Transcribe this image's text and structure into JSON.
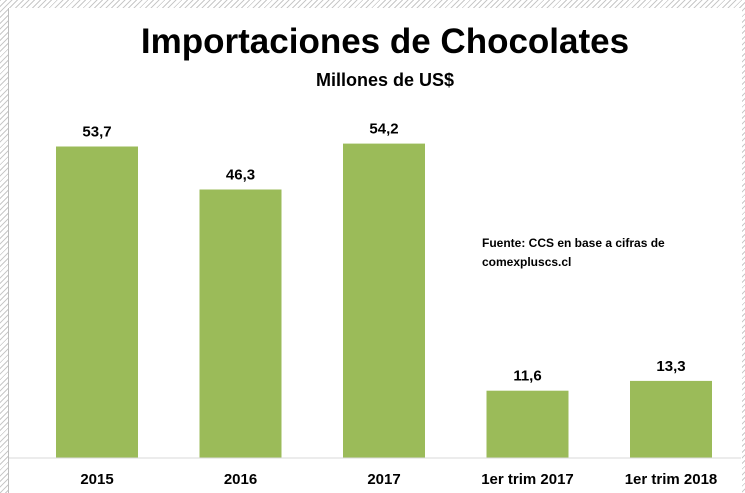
{
  "chart_data": {
    "type": "bar",
    "title": "Importaciones  de Chocolates",
    "subtitle": "Millones de US$",
    "categories": [
      "2015",
      "2016",
      "2017",
      "1er trim 2017",
      "1er trim 2018"
    ],
    "values": [
      53.7,
      46.3,
      54.2,
      11.6,
      13.3
    ],
    "value_labels": [
      "53,7",
      "46,3",
      "54,2",
      "11,6",
      "13,3"
    ],
    "ylim": [
      0,
      60
    ],
    "grid": false,
    "legend": "none",
    "bar_color": "#9bbb59",
    "annotation": [
      "Fuente: CCS en base a cifras de",
      "comexpluscs.cl"
    ]
  }
}
